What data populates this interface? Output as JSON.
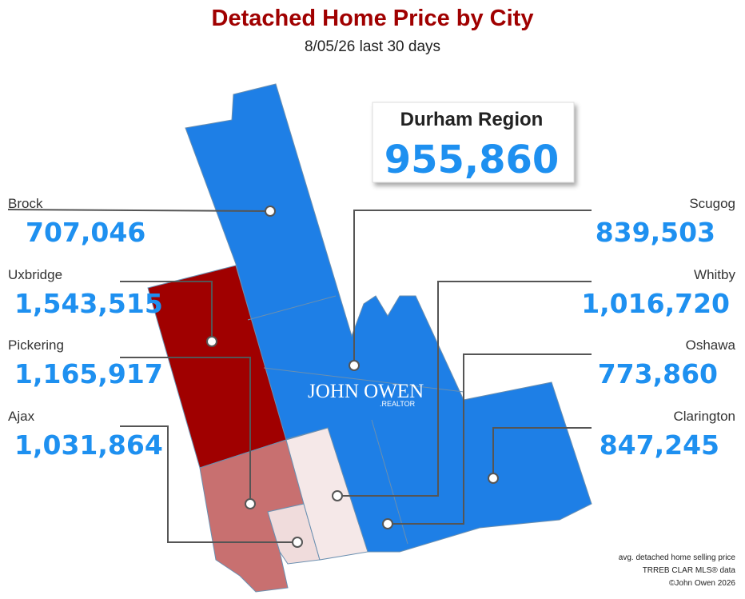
{
  "header": {
    "title": "Detached Home Price by City",
    "subtitle": "8/05/26  last 30 days"
  },
  "region": {
    "name": "Durham Region",
    "value": "955,860"
  },
  "cities": [
    {
      "name": "Brock",
      "value": "707,046"
    },
    {
      "name": "Uxbridge",
      "value": "1,543,515"
    },
    {
      "name": "Pickering",
      "value": "1,165,917"
    },
    {
      "name": "Ajax",
      "value": "1,031,864"
    },
    {
      "name": "Scugog",
      "value": "839,503"
    },
    {
      "name": "Whitby",
      "value": "1,016,720"
    },
    {
      "name": "Oshawa",
      "value": "773,860"
    },
    {
      "name": "Clarington",
      "value": "847,245"
    }
  ],
  "logo": {
    "name": "JOHN OWEN",
    "suffix": ".REALTOR"
  },
  "footer": [
    "avg. detached home selling price",
    "TRREB CLAR MLS® data",
    "©John Owen 2026"
  ]
}
